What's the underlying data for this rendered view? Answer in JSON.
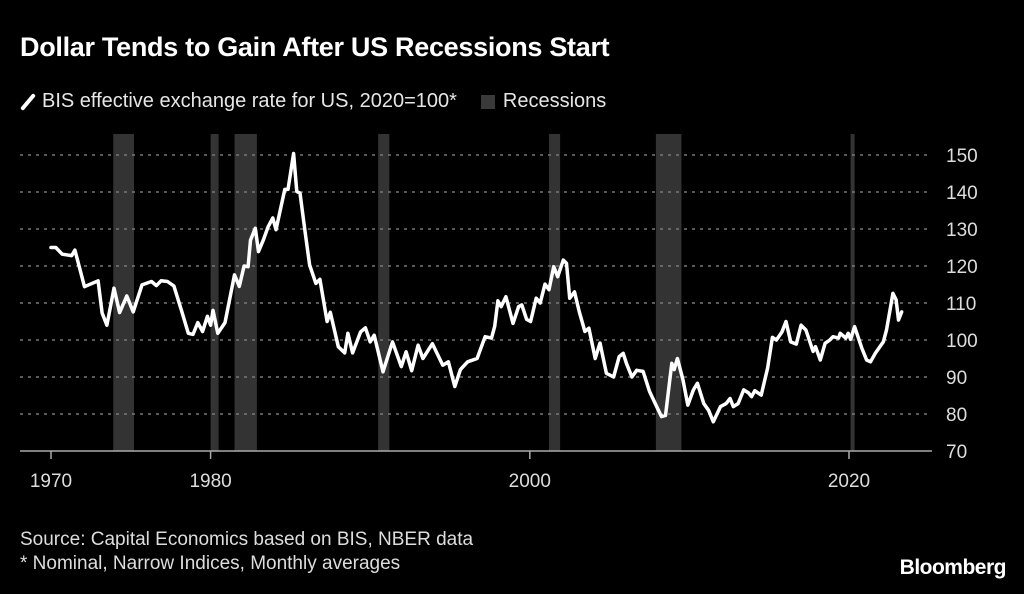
{
  "chart_data": {
    "type": "line",
    "title": "Dollar Tends to Gain After US Recessions Start",
    "legend": [
      "BIS effective exchange rate for US, 2020=100*",
      "Recessions"
    ],
    "legend_placement": "top-left",
    "xlabel": "",
    "ylabel": "",
    "xlim": [
      1968.2,
      2024.5
    ],
    "ylim": [
      70,
      150
    ],
    "x_ticks": [
      1970,
      1980,
      2000,
      2020
    ],
    "y_ticks": [
      70,
      80,
      90,
      100,
      110,
      120,
      130,
      140,
      150
    ],
    "y_axis_side": "right",
    "grid": "horizontal dotted",
    "recessions": [
      [
        1973.9,
        1975.2
      ],
      [
        1980.0,
        1980.5
      ],
      [
        1981.5,
        1982.9
      ],
      [
        1990.5,
        1991.2
      ],
      [
        2001.2,
        2001.9
      ],
      [
        2007.9,
        2009.5
      ],
      [
        2020.1,
        2020.35
      ]
    ],
    "series": [
      {
        "name": "BIS effective exchange rate for US, 2020=100*",
        "x": [
          1970.0,
          1970.3,
          1970.7,
          1971.3,
          1971.5,
          1972.1,
          1972.95,
          1973.2,
          1973.5,
          1973.95,
          1974.3,
          1974.75,
          1975.15,
          1975.7,
          1976.3,
          1976.6,
          1976.9,
          1977.3,
          1977.7,
          1978.2,
          1978.6,
          1978.9,
          1979.2,
          1979.5,
          1979.8,
          1980.0,
          1980.15,
          1980.45,
          1980.9,
          1981.5,
          1981.8,
          1982.1,
          1982.35,
          1982.5,
          1982.8,
          1983.0,
          1983.3,
          1983.6,
          1983.9,
          1984.1,
          1984.65,
          1984.85,
          1985.2,
          1985.4,
          1985.6,
          1985.9,
          1986.2,
          1986.6,
          1986.85,
          1987.3,
          1987.5,
          1988.0,
          1988.4,
          1988.6,
          1988.9,
          1989.4,
          1989.7,
          1990.0,
          1990.25,
          1990.8,
          1991.4,
          1991.95,
          1992.25,
          1992.6,
          1993.0,
          1993.3,
          1993.9,
          1994.55,
          1994.9,
          1995.3,
          1995.65,
          1996.1,
          1996.7,
          1997.2,
          1997.6,
          1997.8,
          1998.0,
          1998.2,
          1998.5,
          1998.95,
          1999.3,
          1999.5,
          1999.8,
          2000.05,
          2000.4,
          2000.65,
          2000.95,
          2001.2,
          2001.5,
          2001.75,
          2002.1,
          2002.3,
          2002.5,
          2002.8,
          2003.1,
          2003.45,
          2003.7,
          2004.1,
          2004.4,
          2004.8,
          2005.25,
          2005.6,
          2005.85,
          2006.05,
          2006.4,
          2006.7,
          2007.1,
          2007.5,
          2007.95,
          2008.25,
          2008.5,
          2008.9,
          2009.05,
          2009.25,
          2009.6,
          2009.9,
          2010.25,
          2010.5,
          2010.9,
          2011.2,
          2011.5,
          2011.95,
          2012.3,
          2012.55,
          2012.75,
          2013.05,
          2013.4,
          2013.7,
          2013.9,
          2014.1,
          2014.5,
          2014.9,
          2015.2,
          2015.45,
          2015.8,
          2016.05,
          2016.35,
          2016.7,
          2017.0,
          2017.3,
          2017.75,
          2017.9,
          2018.2,
          2018.5,
          2018.8,
          2019.0,
          2019.35,
          2019.45,
          2019.8,
          2019.95,
          2020.1,
          2020.35,
          2020.8,
          2021.1,
          2021.35,
          2021.65,
          2022.15,
          2022.35,
          2022.75,
          2022.95,
          2023.1,
          2023.3
        ],
        "values": [
          125,
          125,
          123.2,
          122.8,
          124.3,
          114.4,
          116,
          107.3,
          104,
          114,
          107.4,
          111.9,
          107.6,
          114.9,
          115.8,
          114.7,
          116,
          115.8,
          114.6,
          107.6,
          101.8,
          101.5,
          104.7,
          102.3,
          106.4,
          104,
          108,
          101.8,
          104.7,
          117.6,
          114.5,
          120,
          119.8,
          127,
          130.2,
          123.9,
          127,
          130.6,
          133,
          129.8,
          140.7,
          140.7,
          150.4,
          140.1,
          139.7,
          129.8,
          120.3,
          115.3,
          116.4,
          105,
          107.5,
          98.2,
          96.5,
          101.8,
          96.5,
          102.2,
          103.3,
          99.5,
          101.3,
          91.4,
          99.5,
          92.8,
          96.8,
          91.7,
          98.6,
          95,
          99,
          93.2,
          94.1,
          87.4,
          92,
          94.1,
          95,
          100.9,
          100.5,
          103.7,
          110.6,
          109,
          111.7,
          104.5,
          109,
          109.5,
          105.6,
          105,
          111.3,
          110,
          115.1,
          113.6,
          119.8,
          117.1,
          121.6,
          120.7,
          111.3,
          113,
          107.6,
          102.3,
          103.2,
          95,
          99.2,
          91,
          90,
          95.5,
          96.4,
          93.7,
          90,
          91.8,
          91.5,
          86.1,
          82,
          79.3,
          79.6,
          93.7,
          92,
          95,
          89.2,
          82.4,
          86.5,
          88.3,
          82.8,
          81,
          77.9,
          82,
          82.8,
          84.2,
          82,
          82.8,
          86.5,
          85.7,
          84.7,
          86.3,
          85.1,
          92.4,
          100.7,
          100,
          102.2,
          105,
          99.5,
          98.9,
          104,
          102.7,
          96.9,
          98.2,
          94.6,
          99.1,
          100,
          100.9,
          100.5,
          101.8,
          100.5,
          101.8,
          100.2,
          103.6,
          97.8,
          94.6,
          94.1,
          96.4,
          99.5,
          102.7,
          112.6,
          110.9,
          105.4,
          107.6
        ]
      }
    ],
    "source": "Source: Capital Economics based on BIS, NBER data",
    "note": "* Nominal, Narrow Indices, Monthly averages"
  },
  "brand": "Bloomberg",
  "colors": {
    "background": "#000000",
    "line": "#ffffff",
    "recession": "#333333",
    "grid": "#777777"
  }
}
